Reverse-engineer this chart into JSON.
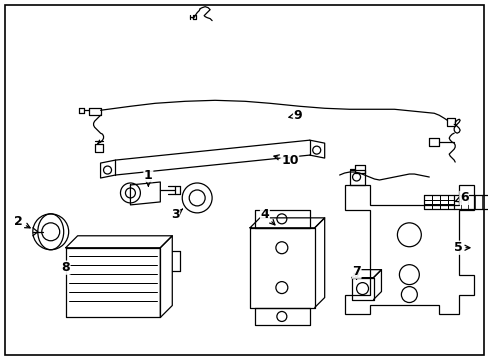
{
  "background_color": "#ffffff",
  "border_color": "#000000",
  "line_color": "#000000",
  "text_color": "#000000",
  "fig_width": 4.89,
  "fig_height": 3.6,
  "dpi": 100
}
